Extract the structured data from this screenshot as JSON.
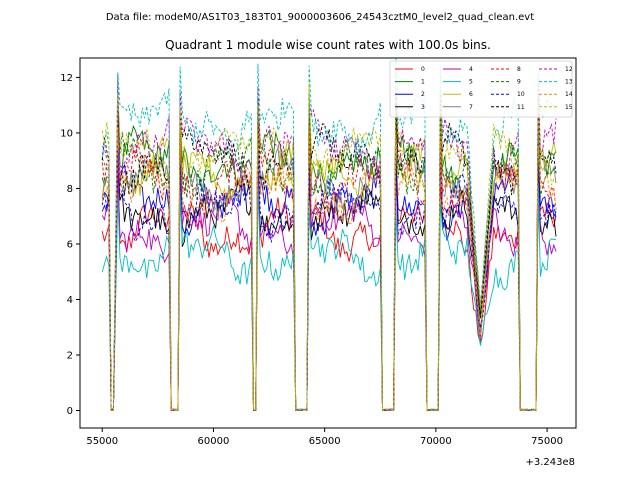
{
  "chart_data": {
    "type": "line",
    "suptitle": "Data file: modeM0/AS1T03_183T01_9000003606_24543cztM0_level2_quad_clean.evt",
    "title": "Quadrant 1 module wise count rates with 100.0s bins.",
    "xlabel": "",
    "ylabel": "",
    "x_offset_label": "+3.243e8",
    "xlim": [
      54000,
      76300
    ],
    "ylim": [
      -0.63,
      12.7
    ],
    "x_ticks": [
      55000,
      60000,
      65000,
      70000,
      75000
    ],
    "x_tick_labels": [
      "55000",
      "60000",
      "65000",
      "70000",
      "75000"
    ],
    "y_ticks": [
      0,
      2,
      4,
      6,
      8,
      10,
      12
    ],
    "y_tick_labels": [
      "0",
      "2",
      "4",
      "6",
      "8",
      "10",
      "12"
    ],
    "grid": false,
    "legend_position": "top-right",
    "bin_seconds": 100,
    "segments": [
      {
        "x_start": 55000,
        "x_end": 55300
      },
      {
        "x_start": 55700,
        "x_end": 58000
      },
      {
        "x_start": 58500,
        "x_end": 61700
      },
      {
        "x_start": 62000,
        "x_end": 63600
      },
      {
        "x_start": 64300,
        "x_end": 67500
      },
      {
        "x_start": 68200,
        "x_end": 69500
      },
      {
        "x_start": 70200,
        "x_end": 73700
      },
      {
        "x_start": 74600,
        "x_end": 75400
      }
    ],
    "gaps": [
      {
        "x_start": 55400,
        "x_end": 55500
      },
      {
        "x_start": 58100,
        "x_end": 58400
      },
      {
        "x_start": 61800,
        "x_end": 61900
      },
      {
        "x_start": 63700,
        "x_end": 64200
      },
      {
        "x_start": 67600,
        "x_end": 68100
      },
      {
        "x_start": 69600,
        "x_end": 70100
      },
      {
        "x_start": 73800,
        "x_end": 74500
      }
    ],
    "dip_center_x": 72000,
    "dip_depth": 0.62,
    "series": [
      {
        "name": "0",
        "color": "#ff0000",
        "dash": "solid",
        "level": 6.5
      },
      {
        "name": "1",
        "color": "#008000",
        "dash": "solid",
        "level": 9.0
      },
      {
        "name": "2",
        "color": "#0000ff",
        "dash": "solid",
        "level": 7.5
      },
      {
        "name": "3",
        "color": "#000000",
        "dash": "solid",
        "level": 7.0
      },
      {
        "name": "4",
        "color": "#bf00bf",
        "dash": "solid",
        "level": 6.6
      },
      {
        "name": "5",
        "color": "#00bfbf",
        "dash": "solid",
        "level": 5.6
      },
      {
        "name": "6",
        "color": "#bfbf00",
        "dash": "solid",
        "level": 8.6
      },
      {
        "name": "7",
        "color": "#808080",
        "dash": "solid",
        "level": 8.2
      },
      {
        "name": "8",
        "color": "#ff0000",
        "dash": "dashed",
        "level": 8.3
      },
      {
        "name": "9",
        "color": "#008000",
        "dash": "dashed",
        "level": 8.8
      },
      {
        "name": "10",
        "color": "#0000ff",
        "dash": "dashed",
        "level": 7.2
      },
      {
        "name": "11",
        "color": "#000000",
        "dash": "dashed",
        "level": 9.0
      },
      {
        "name": "12",
        "color": "#bf00bf",
        "dash": "dashed",
        "level": 9.6
      },
      {
        "name": "13",
        "color": "#00bfbf",
        "dash": "dashed",
        "level": 10.4
      },
      {
        "name": "14",
        "color": "#ff8000",
        "dash": "dashed",
        "level": 7.8
      },
      {
        "name": "15",
        "color": "#bfbf00",
        "dash": "dashed",
        "level": 9.3
      }
    ]
  }
}
